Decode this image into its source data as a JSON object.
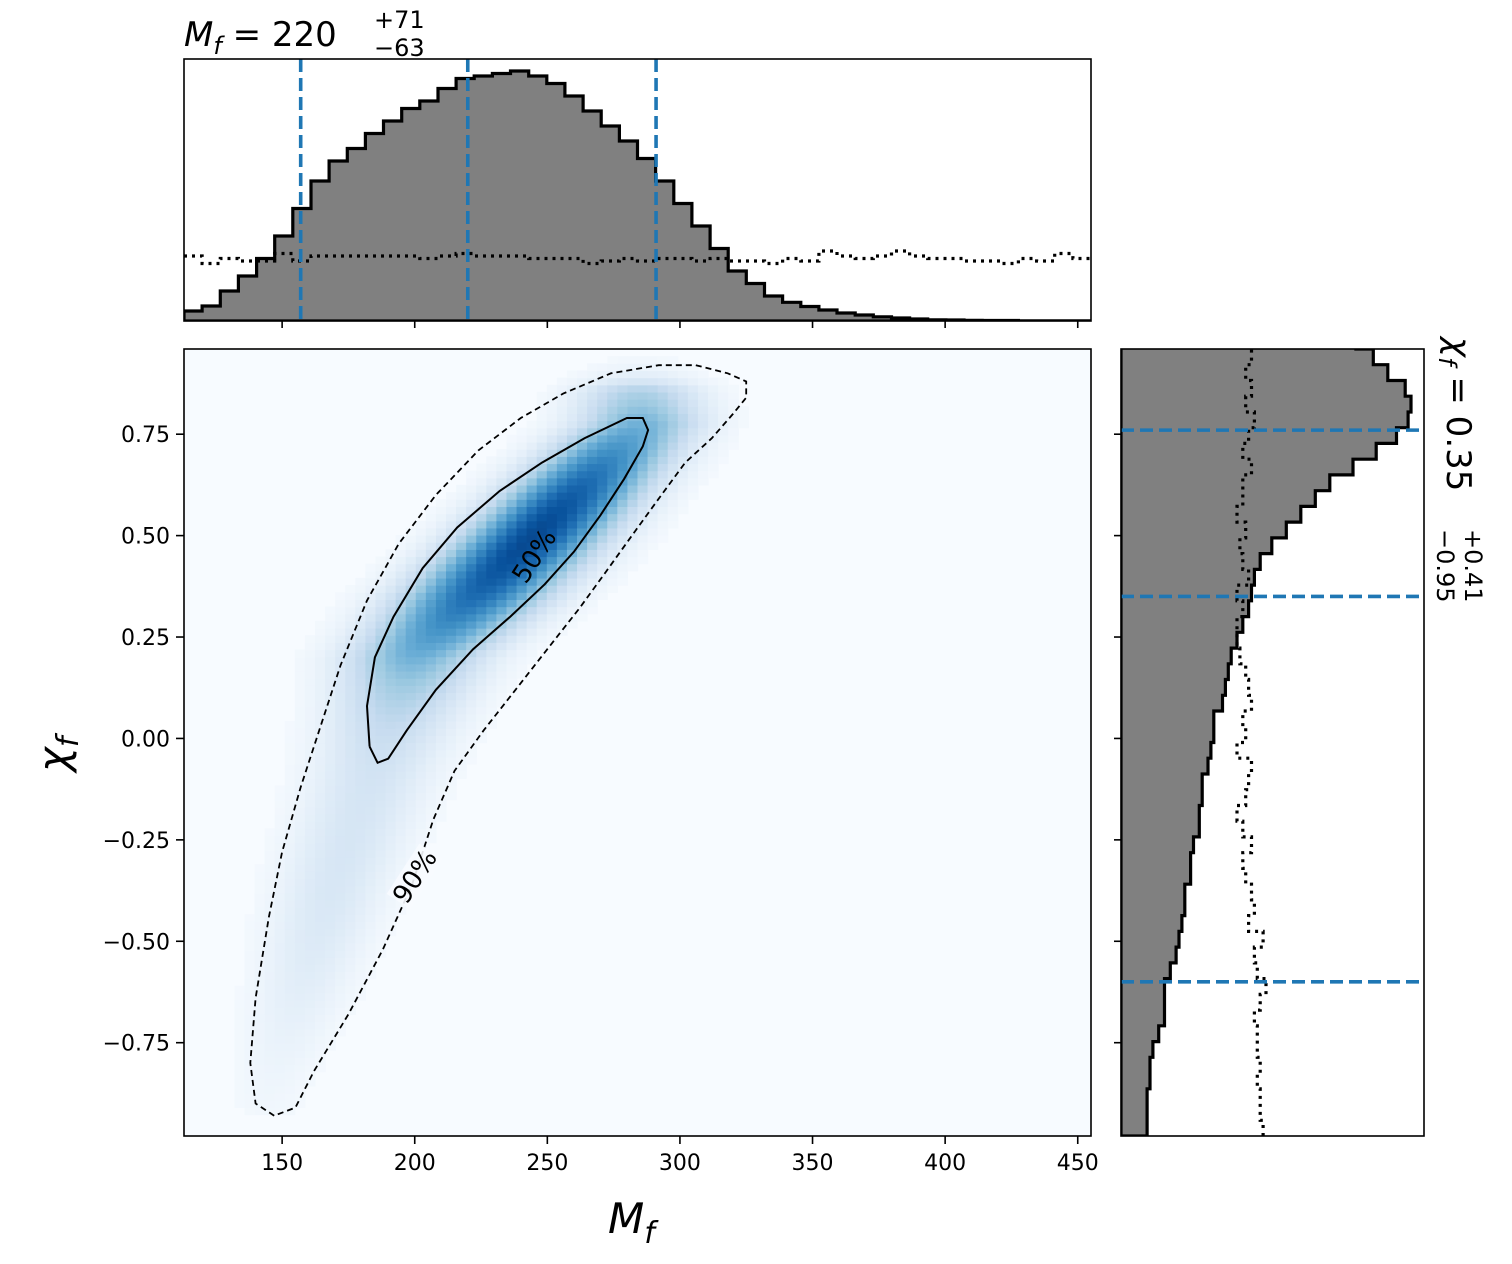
{
  "chart_data": [
    {
      "type": "heatmap",
      "panel": "joint",
      "xlabel": "M_f",
      "ylabel": "χ_f",
      "xlim": [
        113,
        455
      ],
      "ylim": [
        -0.98,
        0.96
      ],
      "x_ticks": [
        150,
        200,
        250,
        300,
        350,
        400,
        450
      ],
      "x_tick_labels": [
        "150",
        "200",
        "250",
        "300",
        "350",
        "400",
        "450"
      ],
      "y_ticks": [
        0.75,
        0.5,
        0.25,
        0.0,
        -0.25,
        -0.5,
        -0.75
      ],
      "y_tick_labels": [
        "0.75",
        "0.50",
        "0.25",
        "0.00",
        "−0.25",
        "−0.50",
        "−0.75"
      ],
      "colormap": "Blues",
      "density_ridge": [
        [
          145,
          -0.88
        ],
        [
          170,
          -0.35
        ],
        [
          200,
          0.2
        ],
        [
          245,
          0.5
        ],
        [
          285,
          0.78
        ]
      ],
      "contours": [
        {
          "label": "50%",
          "style": "solid",
          "label_at": [
            245,
            0.45
          ],
          "path": [
            [
              183,
              -0.02
            ],
            [
              182,
              0.08
            ],
            [
              185,
              0.2
            ],
            [
              192,
              0.3
            ],
            [
              203,
              0.42
            ],
            [
              216,
              0.52
            ],
            [
              232,
              0.61
            ],
            [
              248,
              0.68
            ],
            [
              264,
              0.74
            ],
            [
              280,
              0.79
            ],
            [
              286,
              0.79
            ],
            [
              288,
              0.76
            ],
            [
              286,
              0.72
            ],
            [
              279,
              0.64
            ],
            [
              270,
              0.55
            ],
            [
              260,
              0.46
            ],
            [
              249,
              0.38
            ],
            [
              236,
              0.3
            ],
            [
              222,
              0.22
            ],
            [
              208,
              0.12
            ],
            [
              197,
              0.02
            ],
            [
              190,
              -0.05
            ],
            [
              186,
              -0.06
            ],
            [
              183,
              -0.02
            ]
          ]
        },
        {
          "label": "90%",
          "style": "dashed",
          "label_at": [
            200,
            -0.34
          ],
          "path": [
            [
              147,
              -0.93
            ],
            [
              140,
              -0.9
            ],
            [
              138,
              -0.8
            ],
            [
              140,
              -0.64
            ],
            [
              145,
              -0.44
            ],
            [
              150,
              -0.28
            ],
            [
              157,
              -0.12
            ],
            [
              165,
              0.04
            ],
            [
              172,
              0.18
            ],
            [
              182,
              0.34
            ],
            [
              194,
              0.48
            ],
            [
              208,
              0.6
            ],
            [
              224,
              0.71
            ],
            [
              240,
              0.79
            ],
            [
              256,
              0.85
            ],
            [
              274,
              0.9
            ],
            [
              292,
              0.92
            ],
            [
              306,
              0.92
            ],
            [
              318,
              0.9
            ],
            [
              325,
              0.88
            ],
            [
              325,
              0.84
            ],
            [
              320,
              0.8
            ],
            [
              312,
              0.74
            ],
            [
              302,
              0.68
            ],
            [
              293,
              0.6
            ],
            [
              283,
              0.51
            ],
            [
              272,
              0.41
            ],
            [
              262,
              0.32
            ],
            [
              250,
              0.22
            ],
            [
              238,
              0.12
            ],
            [
              226,
              0.02
            ],
            [
              215,
              -0.08
            ],
            [
              207,
              -0.2
            ],
            [
              199,
              -0.36
            ],
            [
              188,
              -0.52
            ],
            [
              175,
              -0.68
            ],
            [
              162,
              -0.82
            ],
            [
              155,
              -0.91
            ],
            [
              147,
              -0.93
            ]
          ]
        }
      ]
    },
    {
      "type": "bar",
      "panel": "top-marginal",
      "title": "M_f = 220 +71 −63",
      "variable": "M_f",
      "x_edges_start": 113,
      "bin_width": 6.84,
      "posterior_counts": [
        0.04,
        0.06,
        0.12,
        0.18,
        0.25,
        0.34,
        0.45,
        0.56,
        0.64,
        0.69,
        0.75,
        0.8,
        0.85,
        0.88,
        0.93,
        0.97,
        0.98,
        0.99,
        1.0,
        0.98,
        0.95,
        0.9,
        0.84,
        0.78,
        0.72,
        0.65,
        0.56,
        0.47,
        0.38,
        0.29,
        0.2,
        0.15,
        0.1,
        0.075,
        0.058,
        0.044,
        0.032,
        0.024,
        0.017,
        0.012,
        0.008,
        0.005,
        0.004,
        0.003,
        0.002,
        0.002,
        0.001,
        0.001,
        0.001,
        0.001
      ],
      "prior_counts": [
        0.26,
        0.23,
        0.25,
        0.24,
        0.24,
        0.27,
        0.24,
        0.26,
        0.26,
        0.26,
        0.26,
        0.26,
        0.26,
        0.25,
        0.26,
        0.27,
        0.26,
        0.26,
        0.26,
        0.25,
        0.25,
        0.25,
        0.23,
        0.24,
        0.25,
        0.24,
        0.25,
        0.25,
        0.24,
        0.25,
        0.24,
        0.24,
        0.23,
        0.25,
        0.24,
        0.28,
        0.26,
        0.25,
        0.26,
        0.28,
        0.26,
        0.25,
        0.25,
        0.24,
        0.24,
        0.23,
        0.25,
        0.24,
        0.27,
        0.25
      ],
      "dashed_lines": [
        157,
        220,
        291
      ],
      "x_ticks": [
        150,
        200,
        250,
        300,
        350,
        400,
        450
      ],
      "accent_color": "#1f77b4",
      "fill_color": "#808080"
    },
    {
      "type": "bar",
      "panel": "right-marginal",
      "title": "χ_f = 0.35 +0.41 −0.95",
      "variable": "χ_f",
      "orientation": "horizontal",
      "y_edges_start": -0.98,
      "bin_width": 0.0388,
      "posterior_counts": [
        0.09,
        0.09,
        0.09,
        0.1,
        0.1,
        0.11,
        0.13,
        0.15,
        0.15,
        0.15,
        0.17,
        0.19,
        0.2,
        0.21,
        0.22,
        0.22,
        0.24,
        0.24,
        0.25,
        0.27,
        0.27,
        0.28,
        0.28,
        0.3,
        0.31,
        0.32,
        0.32,
        0.35,
        0.36,
        0.37,
        0.38,
        0.4,
        0.42,
        0.44,
        0.45,
        0.46,
        0.48,
        0.52,
        0.57,
        0.62,
        0.67,
        0.72,
        0.8,
        0.88,
        0.95,
        0.99,
        1.0,
        0.98,
        0.92,
        0.87,
        0.81,
        0.56,
        0.41,
        0.33,
        0.27,
        0.2,
        0.12,
        0.08,
        0.05,
        0.03
      ],
      "prior_counts": [
        0.49,
        0.48,
        0.48,
        0.47,
        0.48,
        0.47,
        0.47,
        0.46,
        0.48,
        0.5,
        0.47,
        0.46,
        0.49,
        0.44,
        0.46,
        0.45,
        0.43,
        0.42,
        0.45,
        0.42,
        0.4,
        0.43,
        0.44,
        0.45,
        0.4,
        0.43,
        0.42,
        0.45,
        0.44,
        0.43,
        0.41,
        0.4,
        0.4,
        0.42,
        0.4,
        0.44,
        0.42,
        0.41,
        0.43,
        0.4,
        0.42,
        0.42,
        0.45,
        0.42,
        0.44,
        0.46,
        0.43,
        0.45,
        0.43,
        0.45,
        0.45,
        0.41,
        0.43,
        0.45,
        0.42,
        0.45,
        0.44,
        0.4,
        0.41,
        0.42
      ],
      "dashed_lines": [
        -0.6,
        0.35,
        0.76
      ],
      "y_ticks": [
        0.75,
        0.5,
        0.25,
        0.0,
        -0.25,
        -0.5,
        -0.75
      ],
      "accent_color": "#1f77b4",
      "fill_color": "#808080"
    }
  ],
  "labels": {
    "top_title_base": "M",
    "top_title_sub": "f",
    "top_title_value": " = 220",
    "top_title_sup": "+71",
    "top_title_lo": "−63",
    "right_title_base": "χ",
    "right_title_sub": "f",
    "right_title_value": " = 0.35",
    "right_title_sup": "+0.41",
    "right_title_lo": "−0.95",
    "xlabel_base": "M",
    "xlabel_sub": "f",
    "ylabel_base": "χ",
    "ylabel_sub": "f",
    "contour_50": "50%",
    "contour_90": "90%"
  }
}
